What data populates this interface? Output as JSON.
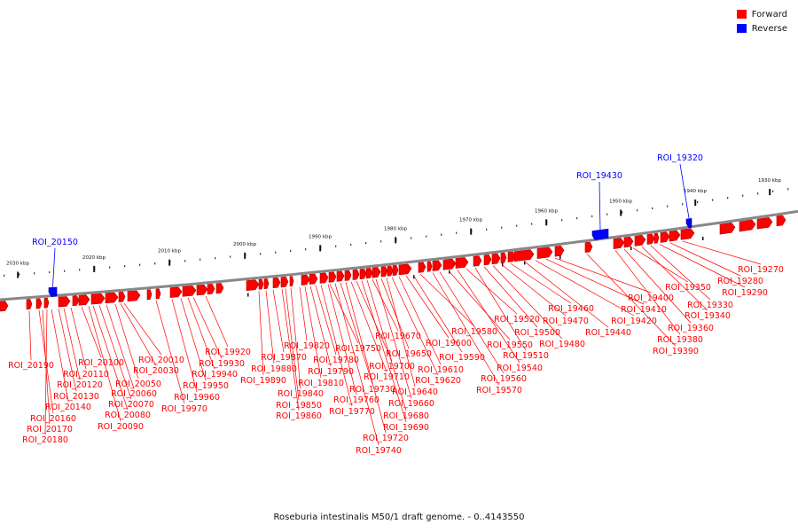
{
  "caption": "Roseburia intestinalis M50/1 draft genome. - 0..4143550",
  "legend": {
    "forward_label": "Forward",
    "reverse_label": "Reverse",
    "forward_color": "#ff0000",
    "reverse_color": "#0000ff"
  },
  "scale": {
    "unit": "kbp",
    "ticks": [
      "2030 kbp",
      "2020 kbp",
      "2010 kbp",
      "2000 kbp",
      "1990 kbp",
      "1980 kbp",
      "1970 kbp",
      "1960 kbp",
      "1950 kbp",
      "1940 kbp",
      "1930 kbp"
    ]
  },
  "reverse_features": [
    "ROI_20150",
    "ROI_19430",
    "ROI_19320"
  ],
  "forward_labels": [
    "ROI_20190",
    "ROI_20160",
    "ROI_20170",
    "ROI_20180",
    "ROI_20140",
    "ROI_20130",
    "ROI_20120",
    "ROI_20110",
    "ROI_20100",
    "ROI_20090",
    "ROI_20080",
    "ROI_20070",
    "ROI_20060",
    "ROI_20050",
    "ROI_20030",
    "ROI_20010",
    "ROI_19970",
    "ROI_19960",
    "ROI_19950",
    "ROI_19940",
    "ROI_19930",
    "ROI_19920",
    "ROI_19890",
    "ROI_19880",
    "ROI_19870",
    "ROI_19860",
    "ROI_19850",
    "ROI_19840",
    "ROI_19820",
    "ROI_19810",
    "ROI_19790",
    "ROI_19780",
    "ROI_19770",
    "ROI_19760",
    "ROI_19750",
    "ROI_19740",
    "ROI_19730",
    "ROI_19720",
    "ROI_19710",
    "ROI_19700",
    "ROI_19690",
    "ROI_19680",
    "ROI_19670",
    "ROI_19660",
    "ROI_19650",
    "ROI_19640",
    "ROI_19620",
    "ROI_19610",
    "ROI_19600",
    "ROI_19590",
    "ROI_19580",
    "ROI_19570",
    "ROI_19560",
    "ROI_19550",
    "ROI_19540",
    "ROI_19520",
    "ROI_19510",
    "ROI_19500",
    "ROI_19480",
    "ROI_19470",
    "ROI_19460",
    "ROI_19440",
    "ROI_19420",
    "ROI_19410",
    "ROI_19400",
    "ROI_19390",
    "ROI_19380",
    "ROI_19360",
    "ROI_19350",
    "ROI_19340",
    "ROI_19330",
    "ROI_19290",
    "ROI_19280",
    "ROI_19270"
  ]
}
